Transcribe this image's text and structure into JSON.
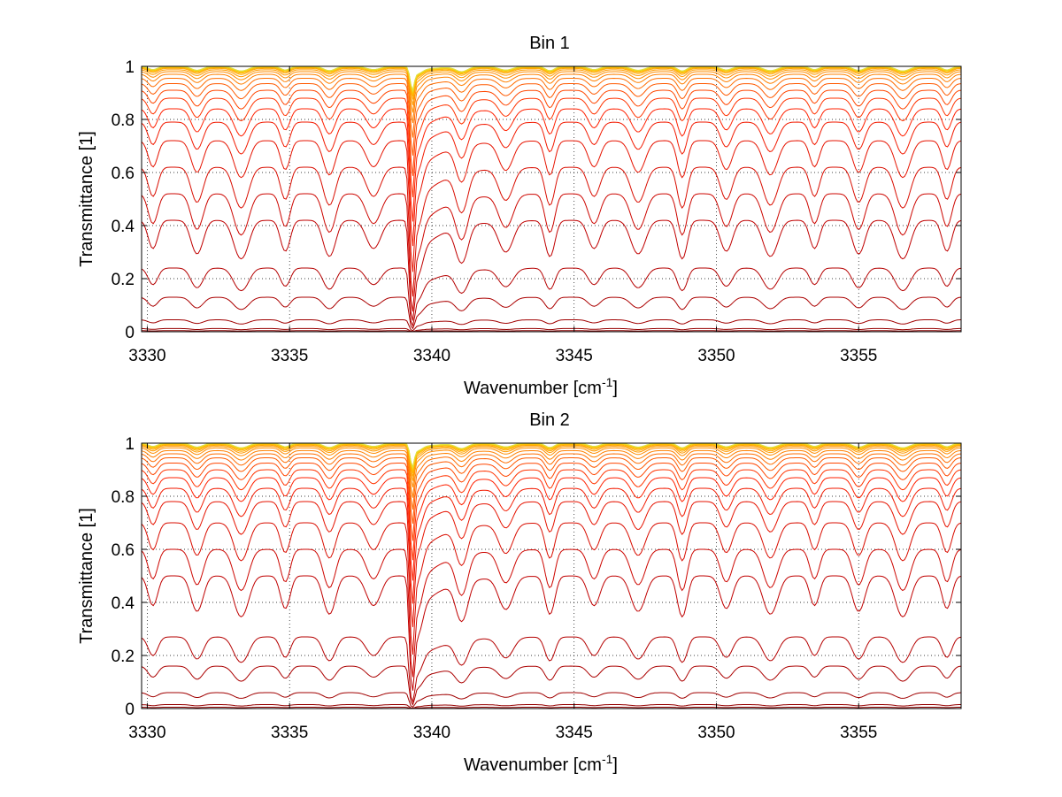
{
  "chart_data": [
    {
      "type": "line",
      "title": "Bin 1",
      "xlabel_main": "Wavenumber [cm",
      "xlabel_sup": "-1",
      "xlabel_end": "]",
      "ylabel": "Transmittance [1]",
      "xlim": [
        3329.8,
        3358.6
      ],
      "ylim": [
        0,
        1
      ],
      "xticks": [
        3330,
        3335,
        3340,
        3345,
        3350,
        3355
      ],
      "yticks": [
        0,
        0.2,
        0.4,
        0.6,
        0.8,
        1
      ],
      "grid": true,
      "lines": {
        "count": 26,
        "color_scale": [
          "#8b0000",
          "#c00000",
          "#ff2000",
          "#ff8000",
          "#ffc000",
          "#e0e040"
        ],
        "baseline_transmittance": [
          0.004,
          0.012,
          0.045,
          0.13,
          0.24,
          0.42,
          0.52,
          0.62,
          0.72,
          0.79,
          0.84,
          0.88,
          0.91,
          0.935,
          0.955,
          0.97,
          0.98,
          0.987,
          0.992,
          0.995,
          0.997,
          0.998,
          0.999,
          0.9995,
          0.9998,
          1.0
        ],
        "strong_line_center": 3339.3,
        "periodic_lines_start": 3330.2,
        "periodic_lines_spacing": 1.55
      }
    },
    {
      "type": "line",
      "title": "Bin 2",
      "xlabel_main": "Wavenumber [cm",
      "xlabel_sup": "-1",
      "xlabel_end": "]",
      "ylabel": "Transmittance [1]",
      "xlim": [
        3329.8,
        3358.6
      ],
      "ylim": [
        0,
        1
      ],
      "xticks": [
        3330,
        3335,
        3340,
        3345,
        3350,
        3355
      ],
      "yticks": [
        0,
        0.2,
        0.4,
        0.6,
        0.8,
        1
      ],
      "grid": true,
      "lines": {
        "count": 26,
        "color_scale": [
          "#8b0000",
          "#c00000",
          "#ff2000",
          "#ff8000",
          "#ffc000",
          "#e0e040"
        ],
        "baseline_transmittance": [
          0.005,
          0.015,
          0.06,
          0.16,
          0.27,
          0.5,
          0.6,
          0.7,
          0.78,
          0.83,
          0.87,
          0.9,
          0.925,
          0.945,
          0.96,
          0.972,
          0.982,
          0.988,
          0.992,
          0.995,
          0.997,
          0.998,
          0.999,
          0.9995,
          0.9998,
          1.0
        ],
        "strong_line_center": 3339.3,
        "periodic_lines_start": 3330.2,
        "periodic_lines_spacing": 1.55
      }
    }
  ]
}
